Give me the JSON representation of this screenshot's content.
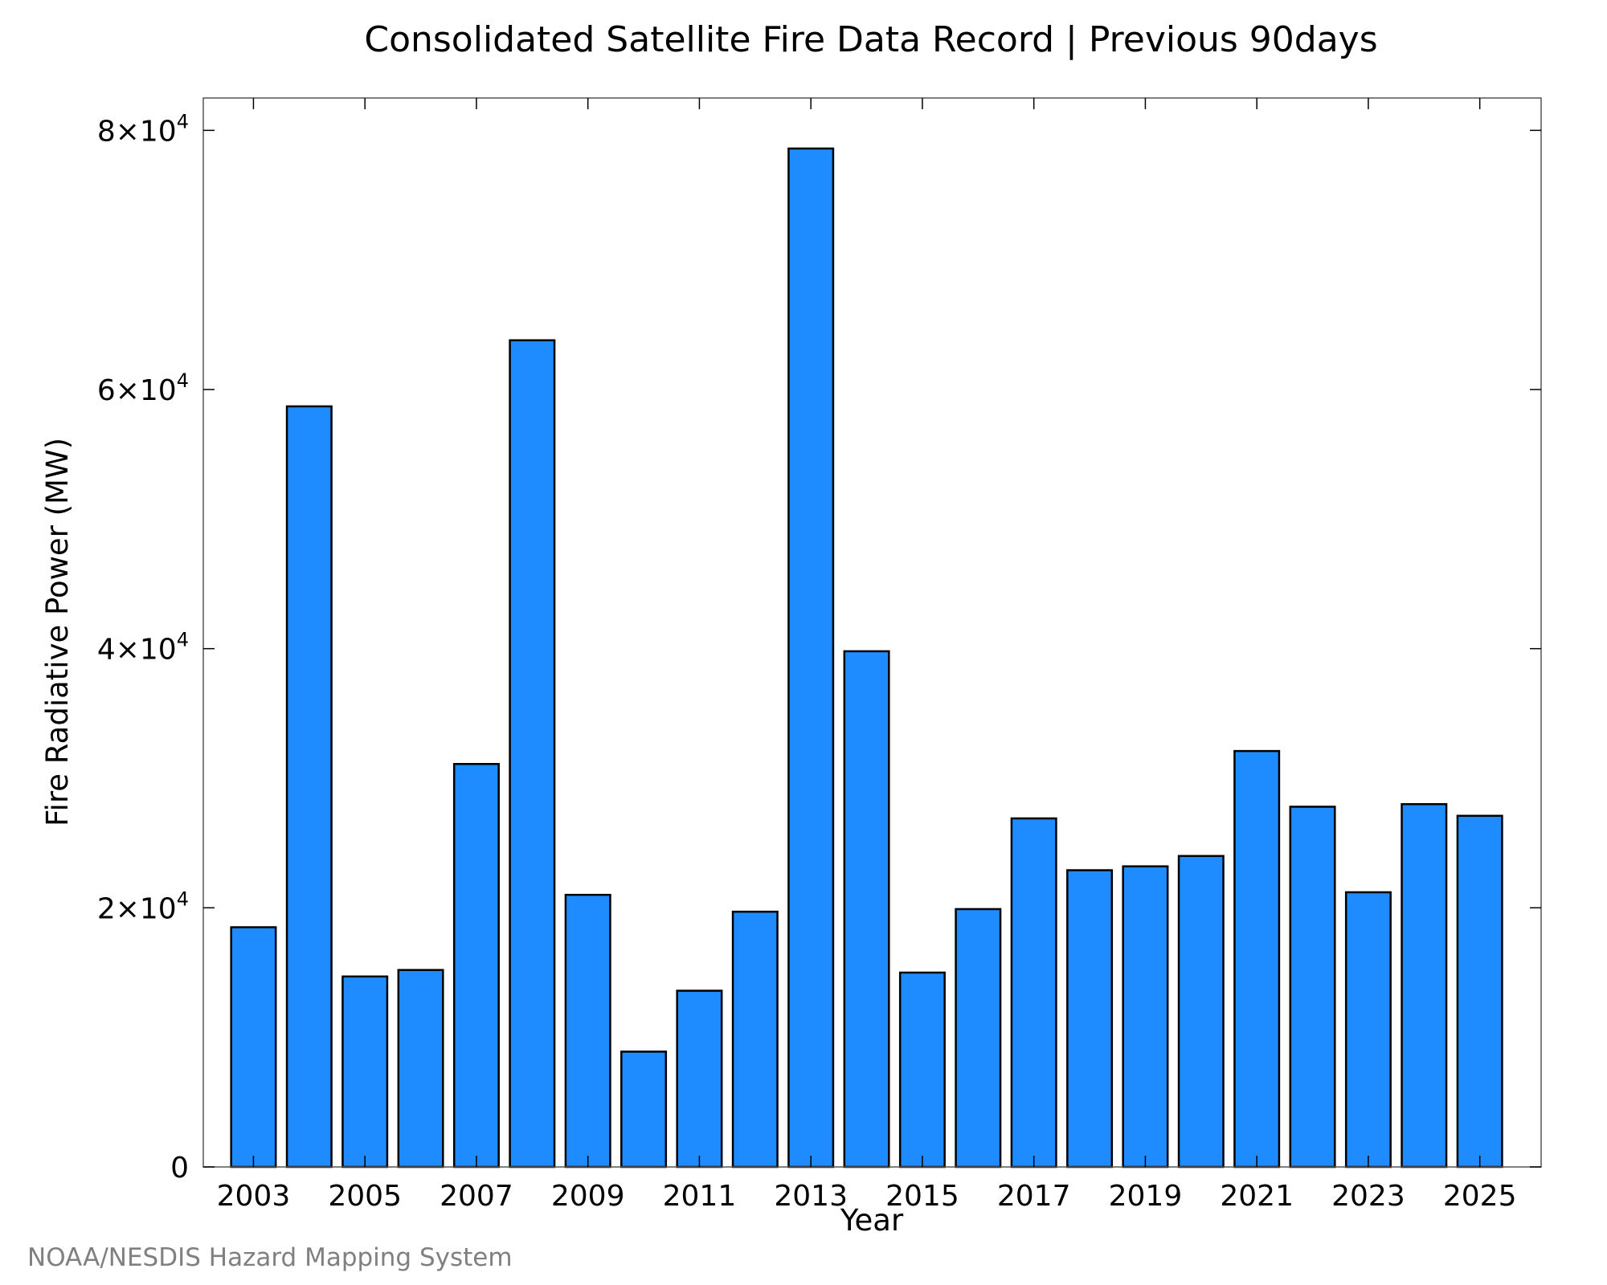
{
  "chart_data": {
    "type": "bar",
    "title": "Consolidated Satellite Fire Data Record | Previous 90days",
    "xlabel": "Year",
    "ylabel": "Fire Radiative Power (MW)",
    "ylim": [
      0,
      82500
    ],
    "xlim": [
      2002.1,
      2026.1
    ],
    "grid": false,
    "bar_color": "#1e8cff",
    "bar_edge_color": "#000000",
    "x_ticks": [
      2003,
      2005,
      2007,
      2009,
      2011,
      2013,
      2015,
      2017,
      2019,
      2021,
      2023,
      2025
    ],
    "x_tick_labels": [
      "2003",
      "2005",
      "2007",
      "2009",
      "2011",
      "2013",
      "2015",
      "2017",
      "2019",
      "2021",
      "2023",
      "2025"
    ],
    "y_ticks": [
      {
        "value": 0,
        "mantissa": "0",
        "exponent": ""
      },
      {
        "value": 20000,
        "mantissa": "2×10",
        "exponent": "4"
      },
      {
        "value": 40000,
        "mantissa": "4×10",
        "exponent": "4"
      },
      {
        "value": 60000,
        "mantissa": "6×10",
        "exponent": "4"
      },
      {
        "value": 80000,
        "mantissa": "8×10",
        "exponent": "4"
      }
    ],
    "categories": [
      "2003",
      "2004",
      "2005",
      "2006",
      "2007",
      "2008",
      "2009",
      "2010",
      "2011",
      "2012",
      "2013",
      "2014",
      "2015",
      "2016",
      "2017",
      "2018",
      "2019",
      "2020",
      "2021",
      "2022",
      "2023",
      "2024",
      "2025"
    ],
    "values": [
      18500,
      58700,
      14700,
      15200,
      31100,
      63800,
      21000,
      8900,
      13600,
      19700,
      78600,
      39800,
      15000,
      19900,
      26900,
      22900,
      23200,
      24000,
      32100,
      27800,
      21200,
      28000,
      27100
    ]
  },
  "credit": "NOAA/NESDIS Hazard Mapping System"
}
